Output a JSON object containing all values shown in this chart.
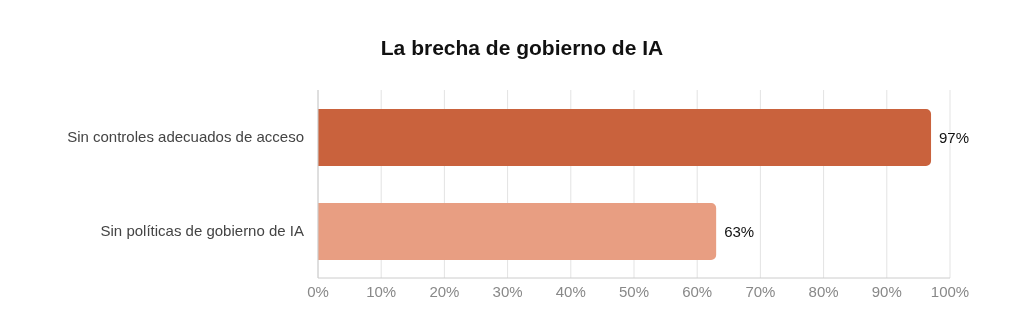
{
  "chart_data": {
    "type": "bar",
    "orientation": "horizontal",
    "title": "La brecha de gobierno de IA",
    "categories": [
      "Sin controles adecuados de acceso",
      "Sin políticas de gobierno de IA"
    ],
    "values": [
      97,
      63
    ],
    "value_labels": [
      "97%",
      "63%"
    ],
    "colors": [
      "#c9623d",
      "#e89e82"
    ],
    "xlim": [
      0,
      100
    ],
    "xticks": [
      {
        "value": 0,
        "label": "0%"
      },
      {
        "value": 10,
        "label": "10%"
      },
      {
        "value": 20,
        "label": "20%"
      },
      {
        "value": 30,
        "label": "30%"
      },
      {
        "value": 40,
        "label": "40%"
      },
      {
        "value": 50,
        "label": "50%"
      },
      {
        "value": 60,
        "label": "60%"
      },
      {
        "value": 70,
        "label": "70%"
      },
      {
        "value": 80,
        "label": "80%"
      },
      {
        "value": 90,
        "label": "90%"
      },
      {
        "value": 100,
        "label": "100%"
      }
    ],
    "grid": "x"
  }
}
